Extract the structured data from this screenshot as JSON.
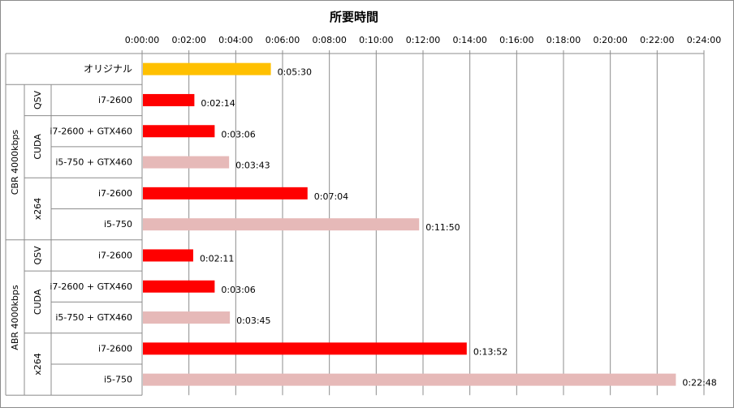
{
  "chart_data": {
    "type": "bar",
    "orientation": "horizontal",
    "title": "所要時間",
    "x_axis": {
      "position": "top",
      "ticks": [
        "0:00:00",
        "0:02:00",
        "0:04:00",
        "0:06:00",
        "0:08:00",
        "0:10:00",
        "0:12:00",
        "0:14:00",
        "0:16:00",
        "0:18:00",
        "0:20:00",
        "0:22:00",
        "0:24:00"
      ],
      "range_seconds": [
        0,
        1440
      ],
      "grid": true
    },
    "groups": [
      {
        "label": "CBR 4000kbps",
        "subgroups": [
          {
            "label": "QSV",
            "rows": 1
          },
          {
            "label": "CUDA",
            "rows": 2
          },
          {
            "label": "x264",
            "rows": 2
          }
        ]
      },
      {
        "label": "ABR 4000kbps",
        "subgroups": [
          {
            "label": "QSV",
            "rows": 1
          },
          {
            "label": "CUDA",
            "rows": 2
          },
          {
            "label": "x264",
            "rows": 2
          }
        ]
      }
    ],
    "rows": [
      {
        "label": "オリジナル",
        "seconds": 330,
        "value_label": "0:05:30",
        "color": "#ffc000"
      },
      {
        "label": "i7-2600",
        "seconds": 134,
        "value_label": "0:02:14",
        "color": "#ff0000"
      },
      {
        "label": "i7-2600 + GTX460",
        "seconds": 186,
        "value_label": "0:03:06",
        "color": "#ff0000"
      },
      {
        "label": "i5-750 + GTX460",
        "seconds": 223,
        "value_label": "0:03:43",
        "color": "#e6b9b8"
      },
      {
        "label": "i7-2600",
        "seconds": 424,
        "value_label": "0:07:04",
        "color": "#ff0000"
      },
      {
        "label": "i5-750",
        "seconds": 710,
        "value_label": "0:11:50",
        "color": "#e6b9b8"
      },
      {
        "label": "i7-2600",
        "seconds": 131,
        "value_label": "0:02:11",
        "color": "#ff0000"
      },
      {
        "label": "i7-2600 + GTX460",
        "seconds": 186,
        "value_label": "0:03:06",
        "color": "#ff0000"
      },
      {
        "label": "i5-750 + GTX460",
        "seconds": 225,
        "value_label": "0:03:45",
        "color": "#e6b9b8"
      },
      {
        "label": "i7-2600",
        "seconds": 832,
        "value_label": "0:13:52",
        "color": "#ff0000"
      },
      {
        "label": "i5-750",
        "seconds": 1368,
        "value_label": "0:22:48",
        "color": "#e6b9b8"
      }
    ]
  }
}
